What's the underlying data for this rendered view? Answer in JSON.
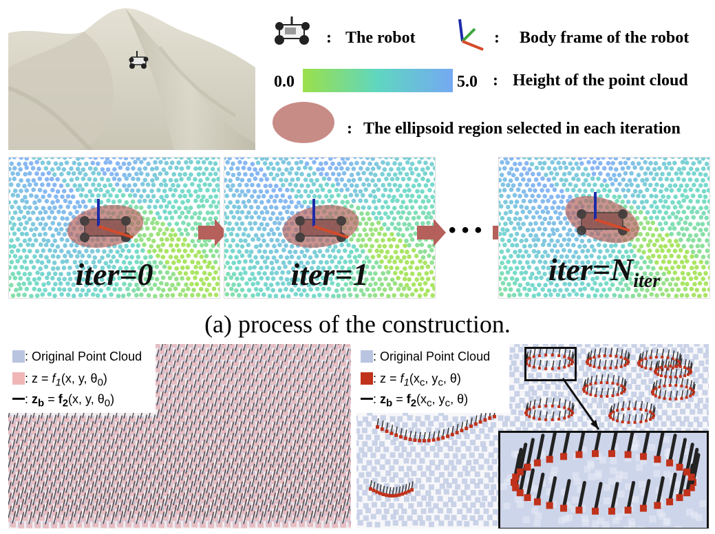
{
  "legend": {
    "robot_label": "The robot",
    "frame_label": "Body frame of the robot",
    "scale_min": "0.0",
    "scale_max": "5.0",
    "height_label": "Height of the point cloud",
    "ellipse_label": "The ellipsoid region selected in each iteration",
    "colon": ":"
  },
  "panels": [
    {
      "label": "iter=0"
    },
    {
      "label": "iter=1"
    },
    {
      "label_main": "iter=N",
      "label_sub": "iter"
    }
  ],
  "ellipsis": "• • •",
  "caption": "(a) process of the construction.",
  "bottom_left": {
    "items": [
      {
        "text": ": Original Point Cloud"
      },
      {
        "prefix": ": z = ",
        "fn": "f",
        "fn_sub": "1",
        "suffix": "(x, y, θ",
        "theta_sub": "0",
        "close": ")"
      },
      {
        "prefix": ": ",
        "zb": "z",
        "zb_sub": "b",
        "eq": " = ",
        "fn": "f",
        "fn_sub": "2",
        "suffix": "(x, y, θ",
        "theta_sub": "0",
        "close": ")"
      }
    ]
  },
  "bottom_right": {
    "items": [
      {
        "text": ": Original Point Cloud"
      },
      {
        "prefix": ": z = ",
        "fn": "f",
        "fn_sub": "1",
        "x": "(x",
        "x_sub": "c",
        "y": ", y",
        "y_sub": "c",
        "rest": ", θ)"
      },
      {
        "prefix": ": ",
        "zb": "z",
        "zb_sub": "b",
        "eq": " = ",
        "fn": "f",
        "fn_sub": "2",
        "x": "(x",
        "x_sub": "c",
        "y": ", y",
        "y_sub": "c",
        "rest": ", θ)"
      }
    ]
  },
  "colors": {
    "terrain": "#d6d3c4",
    "ellipse": "#b5655f",
    "arrow": "#b5605b",
    "grad_start": "#9be04a",
    "grad_mid": "#5fd6c0",
    "grad_end": "#74a9f2",
    "orig_cloud": "#b9c5e0",
    "f1_left": "#f0b6b6",
    "f1_right": "#c0321b"
  }
}
